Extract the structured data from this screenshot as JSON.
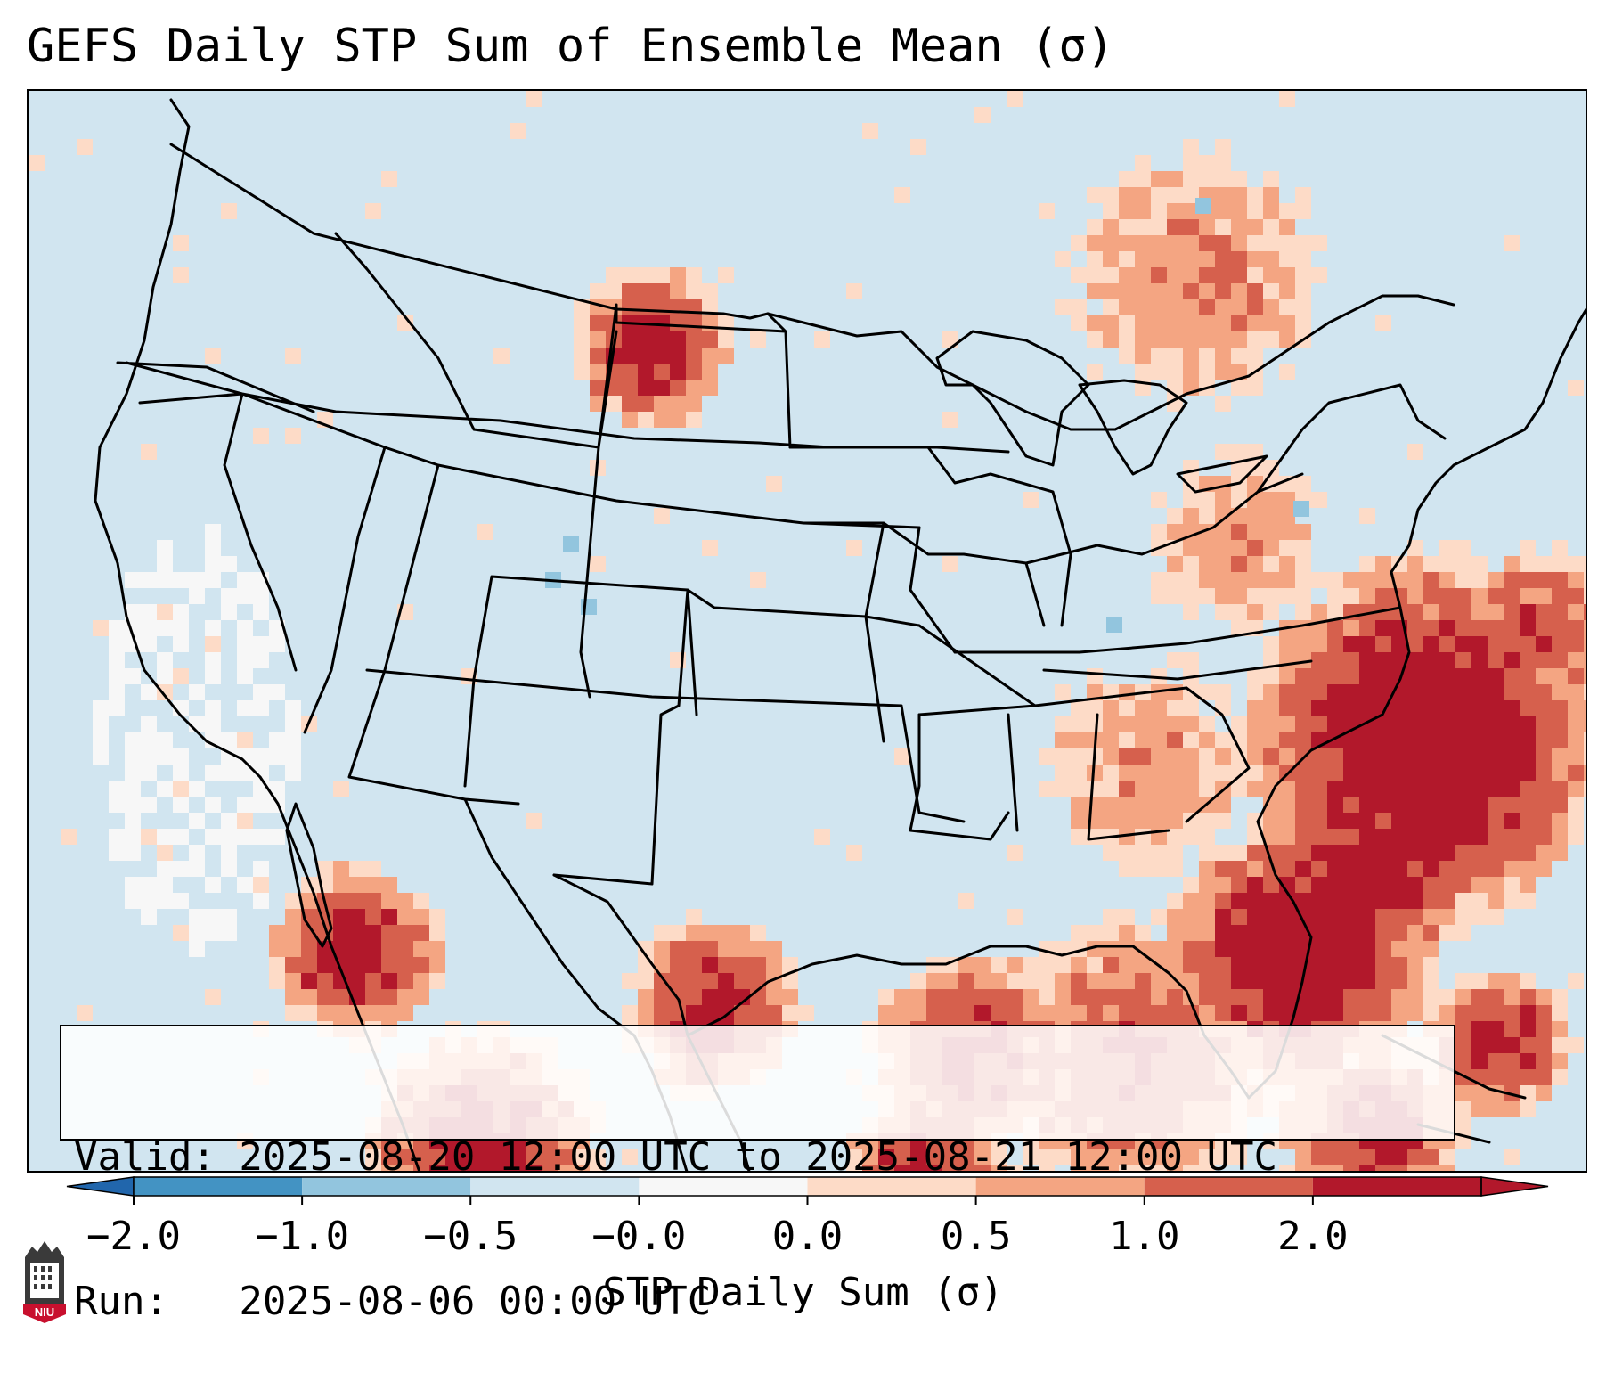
{
  "title": "GEFS Daily STP Sum of Ensemble Mean (σ)",
  "info": {
    "valid_line": "Valid: 2025-08-20 12:00 UTC to 2025-08-21 12:00 UTC",
    "run_line": "Run:   2025-08-06 00:00 UTC"
  },
  "colorbar": {
    "label": "STP Daily Sum (σ)",
    "tick_labels": [
      "−2.0",
      "−1.0",
      "−0.5",
      "−0.0",
      "0.0",
      "0.5",
      "1.0",
      "2.0"
    ],
    "colors": [
      "#4393c3",
      "#92c5de",
      "#d1e5f0",
      "#f7f7f7",
      "#fddbc7",
      "#f4a582",
      "#d6604d",
      "#b2182b"
    ],
    "under_color": "#2166ac",
    "over_color": "#b2182b"
  },
  "map": {
    "background_color": "#d1e5f0",
    "highlight_regions": [
      "southeast-coast-offshore",
      "florida",
      "gulf-of-mexico",
      "baja-california",
      "northern-plains",
      "south-texas",
      "caribbean"
    ]
  },
  "logo": {
    "text": "NIU",
    "icon": "niu-logo-icon"
  }
}
